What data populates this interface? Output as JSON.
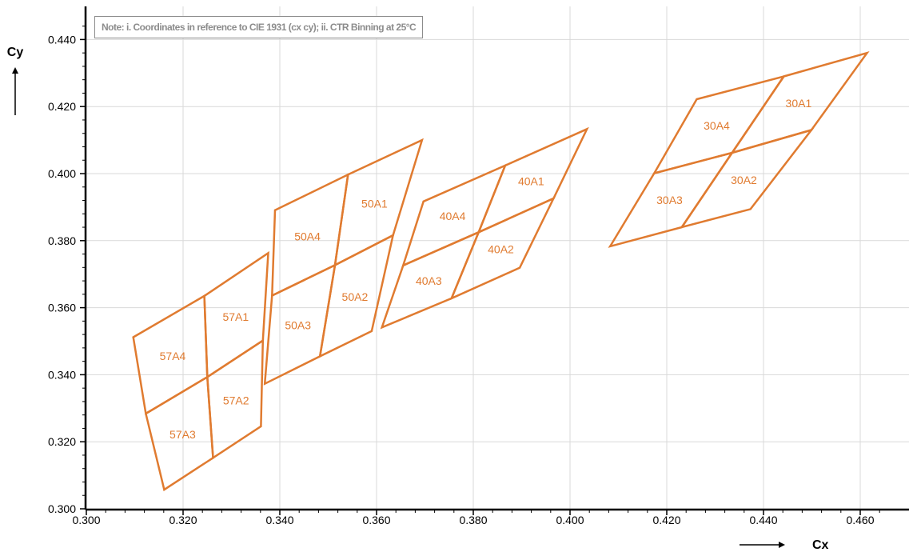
{
  "chart_data": {
    "type": "scatter",
    "title": "",
    "note": "Note: i. Coordinates in reference to CIE 1931 (cx cy); ii. CTR Binning at 25°C",
    "xlabel": "Cx",
    "ylabel": "Cy",
    "xlim": [
      0.3,
      0.465
    ],
    "ylim": [
      0.3,
      0.445
    ],
    "xticks": [
      "0.300",
      "0.320",
      "0.340",
      "0.360",
      "0.380",
      "0.400",
      "0.420",
      "0.440",
      "0.460"
    ],
    "yticks": [
      "0.300",
      "0.320",
      "0.340",
      "0.360",
      "0.380",
      "0.400",
      "0.420",
      "0.440"
    ],
    "grid": true,
    "color": "#E07B30",
    "bins": [
      {
        "name": "57A1",
        "points": [
          [
            0.3244,
            0.3635
          ],
          [
            0.3376,
            0.3763
          ],
          [
            0.3365,
            0.3502
          ],
          [
            0.325,
            0.3393
          ]
        ]
      },
      {
        "name": "57A2",
        "points": [
          [
            0.325,
            0.3393
          ],
          [
            0.3365,
            0.3502
          ],
          [
            0.3361,
            0.3246
          ],
          [
            0.3262,
            0.3152
          ]
        ]
      },
      {
        "name": "57A3",
        "points": [
          [
            0.3123,
            0.3284
          ],
          [
            0.325,
            0.3393
          ],
          [
            0.3262,
            0.3152
          ],
          [
            0.3161,
            0.3057
          ]
        ]
      },
      {
        "name": "57A4",
        "points": [
          [
            0.3097,
            0.3512
          ],
          [
            0.3244,
            0.3635
          ],
          [
            0.325,
            0.3393
          ],
          [
            0.3123,
            0.3284
          ]
        ]
      },
      {
        "name": "50A1",
        "points": [
          [
            0.3541,
            0.3997
          ],
          [
            0.3694,
            0.41
          ],
          [
            0.3634,
            0.3816
          ],
          [
            0.3514,
            0.3727
          ]
        ]
      },
      {
        "name": "50A2",
        "points": [
          [
            0.3514,
            0.3727
          ],
          [
            0.3634,
            0.3816
          ],
          [
            0.359,
            0.353
          ],
          [
            0.3483,
            0.3455
          ]
        ]
      },
      {
        "name": "50A3",
        "points": [
          [
            0.3384,
            0.3636
          ],
          [
            0.3514,
            0.3727
          ],
          [
            0.3483,
            0.3455
          ],
          [
            0.3369,
            0.3373
          ]
        ]
      },
      {
        "name": "50A4",
        "points": [
          [
            0.339,
            0.3891
          ],
          [
            0.3541,
            0.3997
          ],
          [
            0.3514,
            0.3727
          ],
          [
            0.3384,
            0.3636
          ]
        ]
      },
      {
        "name": "40A1",
        "points": [
          [
            0.3866,
            0.4024
          ],
          [
            0.4035,
            0.4133
          ],
          [
            0.3966,
            0.3926
          ],
          [
            0.3811,
            0.3825
          ]
        ]
      },
      {
        "name": "40A2",
        "points": [
          [
            0.3811,
            0.3825
          ],
          [
            0.3966,
            0.3926
          ],
          [
            0.3896,
            0.3719
          ],
          [
            0.3755,
            0.3628
          ]
        ]
      },
      {
        "name": "40A3",
        "points": [
          [
            0.3655,
            0.3726
          ],
          [
            0.3811,
            0.3825
          ],
          [
            0.3755,
            0.3628
          ],
          [
            0.3611,
            0.3541
          ]
        ]
      },
      {
        "name": "40A4",
        "points": [
          [
            0.3697,
            0.3917
          ],
          [
            0.3866,
            0.4024
          ],
          [
            0.3811,
            0.3825
          ],
          [
            0.3655,
            0.3726
          ]
        ]
      },
      {
        "name": "30A1",
        "points": [
          [
            0.4442,
            0.429
          ],
          [
            0.4614,
            0.436
          ],
          [
            0.4499,
            0.413
          ],
          [
            0.4335,
            0.4062
          ]
        ]
      },
      {
        "name": "30A2",
        "points": [
          [
            0.4335,
            0.4062
          ],
          [
            0.4499,
            0.413
          ],
          [
            0.4373,
            0.3894
          ],
          [
            0.4231,
            0.384
          ]
        ]
      },
      {
        "name": "30A3",
        "points": [
          [
            0.4174,
            0.4001
          ],
          [
            0.4335,
            0.4062
          ],
          [
            0.4231,
            0.384
          ],
          [
            0.4083,
            0.3783
          ]
        ]
      },
      {
        "name": "30A4",
        "points": [
          [
            0.4262,
            0.4222
          ],
          [
            0.4442,
            0.429
          ],
          [
            0.4335,
            0.4062
          ],
          [
            0.4174,
            0.4001
          ]
        ]
      }
    ]
  }
}
